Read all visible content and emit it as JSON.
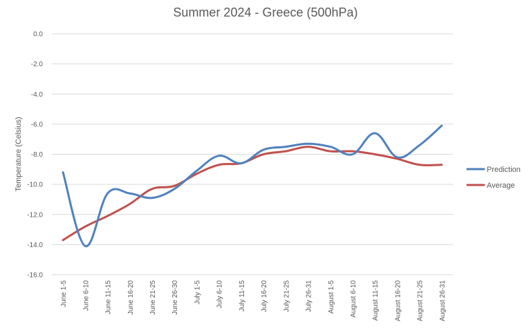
{
  "chart_data": {
    "type": "line",
    "title": "Summer 2024 - Greece (500hPa)",
    "xlabel": "",
    "ylabel": "Temperature (Celsius)",
    "ylim": [
      -16,
      0
    ],
    "y_ticks": [
      "0.0",
      "-2.0",
      "-4.0",
      "-6.0",
      "-8.0",
      "-10.0",
      "-12.0",
      "-14.0",
      "-16.0"
    ],
    "grid": true,
    "legend_position": "right",
    "categories": [
      "June 1-5",
      "June 6-10",
      "June 11-15",
      "June 16-20",
      "June 21-25",
      "June 26-30",
      "July 1-5",
      "July 6-10",
      "July 11-15",
      "July 16-20",
      "July 21-25",
      "July 26-31",
      "August 1-5",
      "August 6-10",
      "August 11-15",
      "August 16-20",
      "August 21-25",
      "August 26-31"
    ],
    "series": [
      {
        "name": "Prediction",
        "color": "#4f81bd",
        "values": [
          -9.2,
          -14.1,
          -10.6,
          -10.6,
          -10.9,
          -10.3,
          -9.1,
          -8.1,
          -8.6,
          -7.7,
          -7.5,
          -7.3,
          -7.5,
          -8.0,
          -6.6,
          -8.2,
          -7.4,
          -6.1
        ]
      },
      {
        "name": "Average",
        "color": "#c0504d",
        "values": [
          -13.7,
          -12.8,
          -12.1,
          -11.3,
          -10.3,
          -10.1,
          -9.3,
          -8.7,
          -8.6,
          -8.0,
          -7.8,
          -7.5,
          -7.8,
          -7.8,
          -8.0,
          -8.3,
          -8.7,
          -8.7
        ]
      }
    ]
  }
}
